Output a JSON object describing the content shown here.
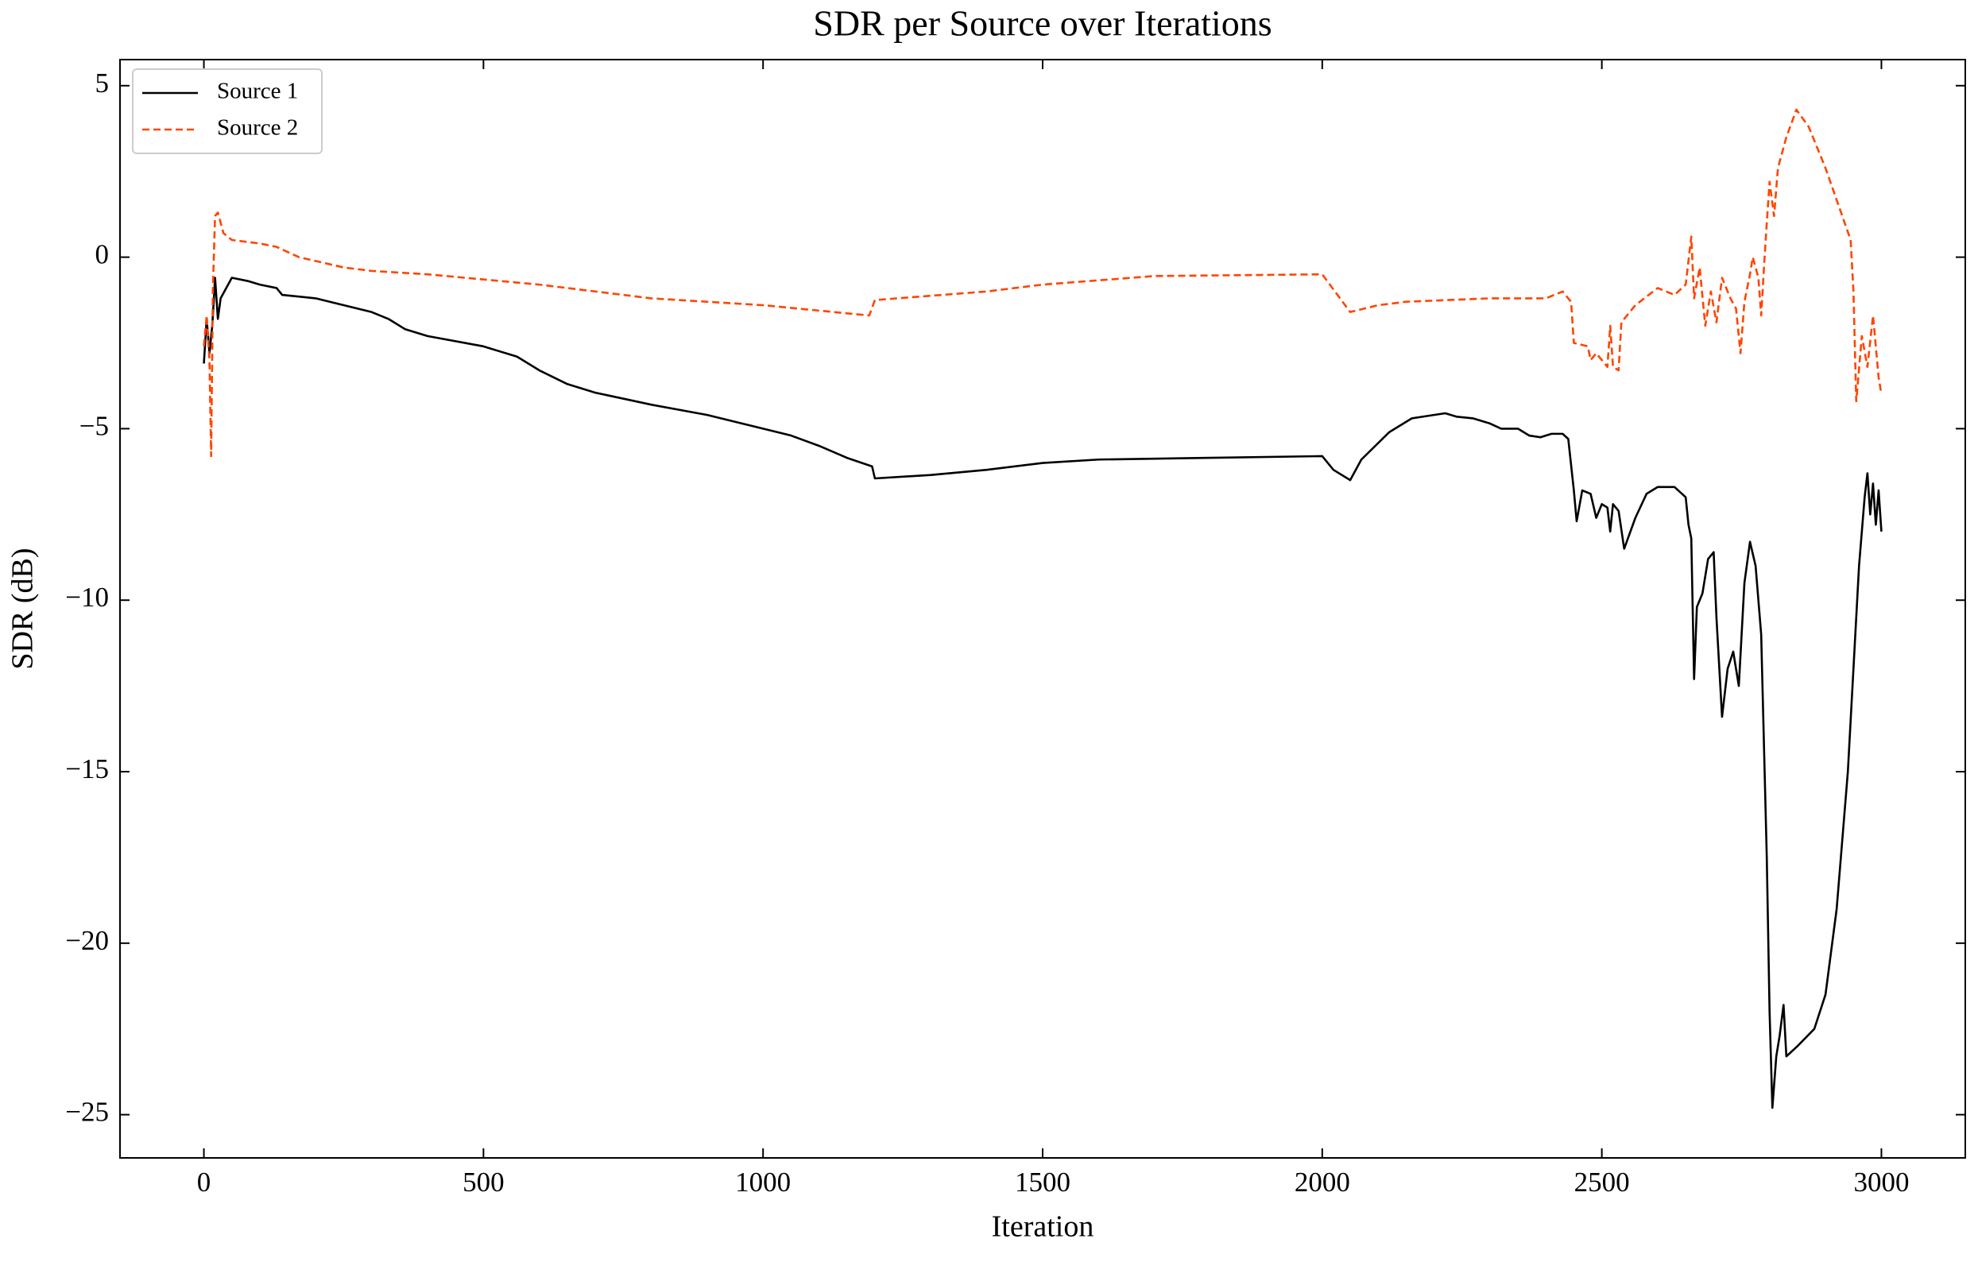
{
  "chart_data": {
    "type": "line",
    "title": "SDR per Source over Iterations",
    "xlabel": "Iteration",
    "ylabel": "SDR (dB)",
    "xlim": [
      -150,
      3150
    ],
    "ylim": [
      -26.26,
      5.76
    ],
    "xticks": [
      0,
      500,
      1000,
      1500,
      2000,
      2500,
      3000
    ],
    "yticks": [
      {
        "value": -25,
        "label": "−25"
      },
      {
        "value": -20,
        "label": "−20"
      },
      {
        "value": -15,
        "label": "−15"
      },
      {
        "value": -10,
        "label": "−10"
      },
      {
        "value": -5,
        "label": "−5"
      },
      0,
      5
    ],
    "legend": "upper left",
    "series": [
      {
        "name": "Source 1",
        "color": "#000000",
        "dash": "solid",
        "x": [
          0,
          5,
          10,
          15,
          20,
          25,
          30,
          50,
          80,
          100,
          130,
          140,
          200,
          300,
          330,
          360,
          400,
          500,
          560,
          600,
          650,
          700,
          800,
          900,
          1000,
          1050,
          1100,
          1150,
          1195,
          1200,
          1300,
          1400,
          1500,
          1600,
          1800,
          2000,
          2020,
          2050,
          2070,
          2120,
          2160,
          2200,
          2220,
          2240,
          2270,
          2300,
          2320,
          2350,
          2370,
          2390,
          2410,
          2430,
          2440,
          2450,
          2455,
          2465,
          2480,
          2490,
          2500,
          2510,
          2515,
          2520,
          2530,
          2540,
          2560,
          2580,
          2600,
          2630,
          2650,
          2655,
          2660,
          2665,
          2670,
          2680,
          2690,
          2700,
          2705,
          2715,
          2725,
          2735,
          2745,
          2755,
          2765,
          2775,
          2785,
          2795,
          2800,
          2805,
          2812,
          2818,
          2825,
          2830,
          2850,
          2880,
          2900,
          2920,
          2930,
          2940,
          2950,
          2960,
          2970,
          2975,
          2980,
          2985,
          2990,
          2995,
          3000
        ],
        "values": [
          -3.1,
          -1.8,
          -2.8,
          -2.0,
          -0.6,
          -1.8,
          -1.2,
          -0.6,
          -0.7,
          -0.8,
          -0.9,
          -1.1,
          -1.2,
          -1.6,
          -1.8,
          -2.1,
          -2.3,
          -2.6,
          -2.9,
          -3.3,
          -3.7,
          -3.95,
          -4.3,
          -4.6,
          -5.0,
          -5.2,
          -5.5,
          -5.85,
          -6.1,
          -6.45,
          -6.35,
          -6.2,
          -6.0,
          -5.9,
          -5.85,
          -5.8,
          -6.2,
          -6.5,
          -5.9,
          -5.1,
          -4.7,
          -4.6,
          -4.55,
          -4.65,
          -4.7,
          -4.85,
          -5.0,
          -5.0,
          -5.2,
          -5.25,
          -5.15,
          -5.15,
          -5.3,
          -6.8,
          -7.7,
          -6.8,
          -6.9,
          -7.6,
          -7.2,
          -7.3,
          -8.0,
          -7.2,
          -7.4,
          -8.5,
          -7.6,
          -6.9,
          -6.7,
          -6.7,
          -7.0,
          -7.8,
          -8.2,
          -12.3,
          -10.2,
          -9.8,
          -8.8,
          -8.6,
          -10.5,
          -13.4,
          -12.0,
          -11.5,
          -12.5,
          -9.5,
          -8.3,
          -9.0,
          -11.0,
          -17.5,
          -22.0,
          -24.8,
          -23.3,
          -22.7,
          -21.8,
          -23.3,
          -23.0,
          -22.5,
          -21.5,
          -19.0,
          -17.0,
          -15.0,
          -12.0,
          -9.0,
          -7.0,
          -6.3,
          -7.5,
          -6.6,
          -7.8,
          -6.8,
          -8.0
        ]
      },
      {
        "name": "Source 2",
        "color": "#ff4500",
        "dash": "dashed",
        "x": [
          0,
          5,
          10,
          13,
          16,
          20,
          25,
          35,
          50,
          100,
          130,
          170,
          250,
          300,
          400,
          600,
          800,
          1000,
          1190,
          1200,
          1400,
          1500,
          1700,
          2000,
          2050,
          2100,
          2150,
          2300,
          2400,
          2430,
          2445,
          2450,
          2475,
          2480,
          2490,
          2500,
          2510,
          2515,
          2520,
          2530,
          2535,
          2560,
          2600,
          2630,
          2650,
          2660,
          2665,
          2675,
          2685,
          2695,
          2705,
          2715,
          2730,
          2740,
          2748,
          2755,
          2765,
          2770,
          2780,
          2785,
          2790,
          2795,
          2800,
          2808,
          2815,
          2830,
          2848,
          2870,
          2900,
          2930,
          2945,
          2950,
          2955,
          2965,
          2975,
          2985,
          2995,
          3000
        ],
        "values": [
          -2.6,
          -1.7,
          -3.0,
          -5.8,
          -1.0,
          1.2,
          1.3,
          0.7,
          0.5,
          0.4,
          0.3,
          0.0,
          -0.3,
          -0.4,
          -0.5,
          -0.8,
          -1.2,
          -1.4,
          -1.7,
          -1.25,
          -1.0,
          -0.8,
          -0.55,
          -0.5,
          -1.6,
          -1.4,
          -1.3,
          -1.2,
          -1.2,
          -1.0,
          -1.3,
          -2.5,
          -2.6,
          -3.0,
          -2.8,
          -3.0,
          -3.2,
          -2.0,
          -3.2,
          -3.3,
          -1.9,
          -1.4,
          -0.9,
          -1.1,
          -0.8,
          0.6,
          -1.2,
          -0.3,
          -2.0,
          -1.0,
          -1.9,
          -0.6,
          -1.2,
          -1.5,
          -2.8,
          -1.3,
          -0.5,
          0.0,
          -0.6,
          -1.7,
          -0.3,
          1.0,
          2.2,
          1.2,
          2.6,
          3.5,
          4.3,
          3.8,
          2.6,
          1.2,
          0.5,
          -1.0,
          -4.2,
          -2.3,
          -3.2,
          -1.7,
          -3.5,
          -4.0
        ]
      }
    ]
  }
}
